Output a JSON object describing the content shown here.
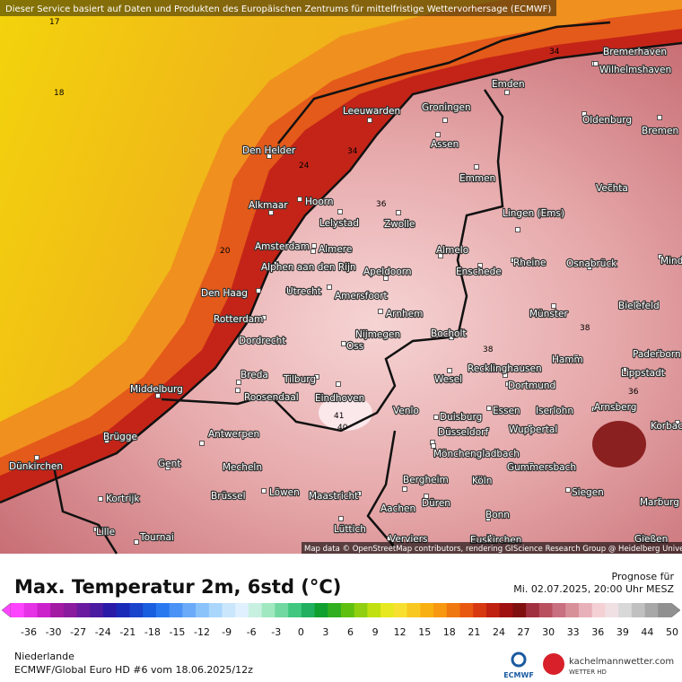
{
  "header": {
    "notice": "Dieser Service basiert auf Daten und Produkten des Europäischen Zentrums für mittelfristige Wettervorhersage (ECMWF)"
  },
  "map": {
    "cities": [
      "Bremerhaven",
      "Wilhelmshaven",
      "Emden",
      "Leeuwarden",
      "Groningen",
      "Oldenburg",
      "Bremen",
      "Den Helder",
      "Assen",
      "Emmen",
      "Alkmaar",
      "Hoorn",
      "Vechta",
      "Lelystad",
      "Zwolle",
      "Lingen (Ems)",
      "Amsterdam",
      "Almere",
      "Almelo",
      "Mind",
      "Rheine",
      "Osnabrück",
      "Alphen aan den Rijn",
      "Apeldoorn",
      "Enschede",
      "Den Haag",
      "Utrecht",
      "Amersfoort",
      "Bielefeld",
      "Arnhem",
      "Münster",
      "Rotterdam",
      "Nijmegen",
      "Bocholt",
      "Dordrecht",
      "Oss",
      "Paderborn",
      "Hamm",
      "Recklinghausen",
      "Lippstadt",
      "Breda",
      "Tilburg",
      "Wesel",
      "Middelburg",
      "Dortmund",
      "Roosendaal",
      "Eindhoven",
      "Arnsberg",
      "Venlo",
      "Essen",
      "Iserlohn",
      "Duisburg",
      "Korbach",
      "Antwerpen",
      "Düsseldorf",
      "Wuppertal",
      "Brügge",
      "Mönchengladbach",
      "Gent",
      "Dünkirchen",
      "Mecheln",
      "Gummersbach",
      "Bergheim",
      "Köln",
      "Siegen",
      "Kortrijk",
      "Brüssel",
      "Löwen",
      "Maastricht",
      "Düren",
      "Marburg",
      "Aachen",
      "Bonn",
      "Lille",
      "Lüttich",
      "Tournai",
      "Verviers",
      "Euskirchen",
      "Gießen"
    ],
    "contour_labels": [
      17,
      18,
      20,
      24,
      34,
      36,
      38,
      38,
      36,
      40,
      41,
      34
    ],
    "attribution": "Map data © OpenStreetMap contributors, rendering GIScience Research Group @ Heidelberg University"
  },
  "legend": {
    "title": "Max. Temperatur 2m, 6std (°C)",
    "forecast_label": "Prognose für",
    "forecast_time": "Mi. 02.07.2025, 20:00 Uhr MESZ",
    "ticks": [
      -36,
      -30,
      -27,
      -24,
      -21,
      -18,
      -15,
      -12,
      -9,
      -6,
      -3,
      0,
      3,
      6,
      9,
      12,
      15,
      18,
      21,
      24,
      27,
      30,
      33,
      36,
      39,
      44,
      50
    ],
    "colors": [
      "#ff44ff",
      "#e633e6",
      "#cc22cc",
      "#a31aa3",
      "#8a1a9e",
      "#6a1a9e",
      "#4a1aa0",
      "#2a1aa8",
      "#1a2ab8",
      "#1a44cc",
      "#1a5ee0",
      "#2a78f0",
      "#4a92f5",
      "#6aaaf8",
      "#8ac2fa",
      "#aad6fc",
      "#cae6fd",
      "#e0f0fe",
      "#c8f0e0",
      "#a0e8c0",
      "#70d8a0",
      "#40c880",
      "#20b060",
      "#10a030",
      "#30b020",
      "#60c010",
      "#90d010",
      "#c0e010",
      "#e8e820",
      "#f8e030",
      "#f8c820",
      "#f8b010",
      "#f89810",
      "#f07810",
      "#e85810",
      "#d83810",
      "#c02010",
      "#a01010",
      "#801010",
      "#a03040",
      "#b85060",
      "#c87080",
      "#d89098",
      "#e8b0b8",
      "#f4d0d4",
      "#f0e0e4",
      "#d8d8d8",
      "#c0c0c0",
      "#a8a8a8",
      "#909090"
    ]
  },
  "footer": {
    "region": "Niederlande",
    "model": "ECMWF/Global Euro HD #6 vom  18.06.2025/12z",
    "ecmwf_logo": "ECMWF",
    "site": "kachelmannwetter.com",
    "site_sub": "WETTER HD"
  }
}
